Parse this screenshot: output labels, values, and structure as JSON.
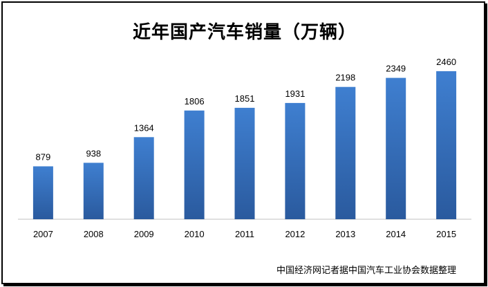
{
  "chart_data": {
    "type": "bar",
    "title": "近年国产汽车销量（万辆）",
    "categories": [
      "2007",
      "2008",
      "2009",
      "2010",
      "2011",
      "2012",
      "2013",
      "2014",
      "2015"
    ],
    "values": [
      879,
      938,
      1364,
      1806,
      1851,
      1931,
      2198,
      2349,
      2460
    ],
    "data_labels": [
      "879",
      "938",
      "1364",
      "1806",
      "1851",
      "1931",
      "2198",
      "2349",
      "2460"
    ],
    "xlabel": "",
    "ylabel": "",
    "ylim": [
      0,
      2700
    ],
    "grid": false,
    "legend": "none",
    "bar_color_top": "#3f7fd0",
    "bar_color_bottom": "#2a5a9e"
  },
  "footer": {
    "source": "中国经济网记者据中国汽车工业协会数据整理"
  }
}
